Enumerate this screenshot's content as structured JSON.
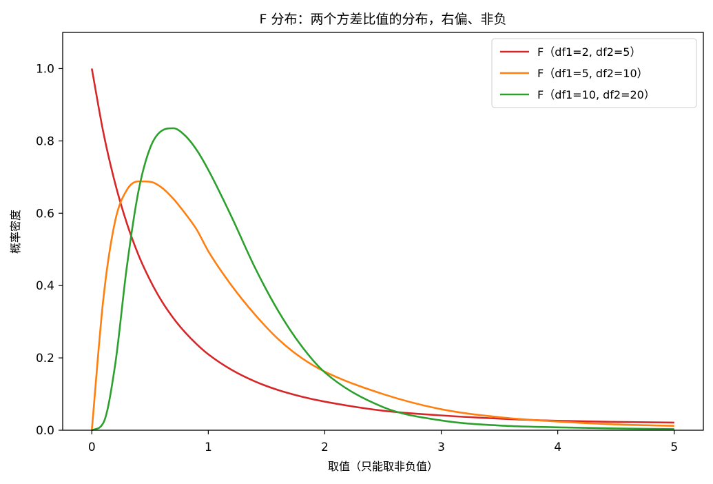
{
  "chart_data": {
    "type": "line",
    "title": "F 分布：两个方差比值的分布，右偏、非负",
    "xlabel": "取值（只能取非负值）",
    "ylabel": "概率密度",
    "xlim": [
      -0.25,
      5.25
    ],
    "ylim": [
      0,
      1.1
    ],
    "xticks": [
      0,
      1,
      2,
      3,
      4,
      5
    ],
    "xtick_labels": [
      "0",
      "1",
      "2",
      "3",
      "4",
      "5"
    ],
    "yticks": [
      0.0,
      0.2,
      0.4,
      0.6,
      0.8,
      1.0
    ],
    "ytick_labels": [
      "0.0",
      "0.2",
      "0.4",
      "0.6",
      "0.8",
      "1.0"
    ],
    "grid": false,
    "legend_position": "top-right",
    "x": [
      0,
      0.1,
      0.2,
      0.3,
      0.4,
      0.5,
      0.6,
      0.7,
      0.8,
      0.9,
      1.0,
      1.2,
      1.4,
      1.6,
      1.8,
      2.0,
      2.5,
      3.0,
      3.5,
      4.0,
      4.5,
      5.0
    ],
    "series": [
      {
        "name": "F（df1=2, df2=5）",
        "color": "#d62728",
        "values": [
          1.0,
          0.822,
          0.683,
          0.573,
          0.485,
          0.415,
          0.357,
          0.31,
          0.271,
          0.238,
          0.21,
          0.167,
          0.135,
          0.111,
          0.093,
          0.079,
          0.054,
          0.041,
          0.032,
          0.026,
          0.023,
          0.021
        ]
      },
      {
        "name": "F（df1=5, df2=10）",
        "color": "#ff7f0e",
        "values": [
          0.0,
          0.366,
          0.578,
          0.664,
          0.688,
          0.687,
          0.671,
          0.64,
          0.6,
          0.555,
          0.495,
          0.4,
          0.32,
          0.252,
          0.2,
          0.162,
          0.1,
          0.058,
          0.036,
          0.024,
          0.016,
          0.012
        ]
      },
      {
        "name": "F（df1=10, df2=20）",
        "color": "#2ca02c",
        "values": [
          0.0,
          0.021,
          0.18,
          0.45,
          0.66,
          0.78,
          0.828,
          0.835,
          0.815,
          0.775,
          0.72,
          0.59,
          0.45,
          0.33,
          0.233,
          0.16,
          0.064,
          0.027,
          0.013,
          0.008,
          0.005,
          0.003
        ]
      }
    ]
  }
}
